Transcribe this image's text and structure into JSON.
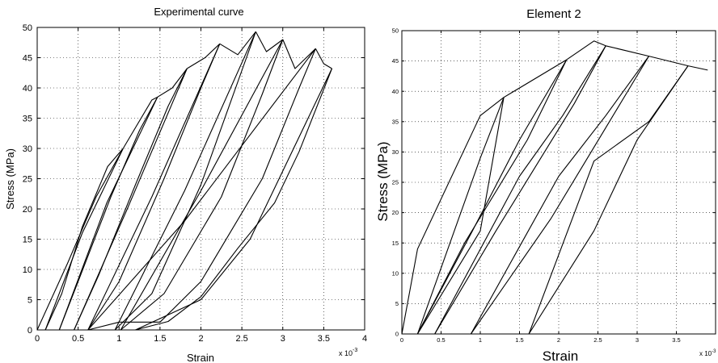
{
  "chart_data": [
    {
      "type": "line",
      "title": "Experimental curve",
      "xlabel": "Strain",
      "ylabel": "Stress (MPa)",
      "x_multiplier": "x 10",
      "x_exponent": "-3",
      "xlim": [
        0,
        4
      ],
      "ylim": [
        0,
        50
      ],
      "xticks": [
        0,
        0.5,
        1,
        1.5,
        2,
        2.5,
        3,
        3.5,
        4
      ],
      "xtick_labels": [
        "0",
        "0.5",
        "1",
        "1.5",
        "2",
        "2.5",
        "3",
        "3.5",
        "4"
      ],
      "yticks": [
        0,
        5,
        10,
        15,
        20,
        25,
        30,
        35,
        40,
        45,
        50
      ],
      "ytick_labels": [
        "0",
        "5",
        "10",
        "15",
        "20",
        "25",
        "30",
        "35",
        "40",
        "45",
        "50"
      ],
      "grid": true,
      "series": [
        {
          "x": [
            0,
            0.37,
            0.72,
            1.05
          ],
          "y": [
            0,
            11,
            22,
            30
          ]
        },
        {
          "x": [
            1.05,
            0.86,
            0.55,
            0.3,
            0.1
          ],
          "y": [
            30,
            27,
            17,
            6,
            0
          ]
        },
        {
          "x": [
            0.1,
            0.55,
            1.05
          ],
          "y": [
            0,
            16,
            30
          ]
        },
        {
          "x": [
            1.05,
            1.4,
            1.47
          ],
          "y": [
            30,
            38,
            38.5
          ]
        },
        {
          "x": [
            1.47,
            1.25,
            0.9,
            0.5,
            0.27
          ],
          "y": [
            38.5,
            33,
            22,
            8,
            0
          ]
        },
        {
          "x": [
            0.27,
            0.85,
            1.47
          ],
          "y": [
            0,
            21,
            38.5
          ]
        },
        {
          "x": [
            1.47,
            1.65,
            1.83
          ],
          "y": [
            38.5,
            40,
            43.2
          ]
        },
        {
          "x": [
            1.83,
            1.6,
            1.2,
            0.75,
            0.45
          ],
          "y": [
            43.2,
            37,
            24,
            9,
            0
          ]
        },
        {
          "x": [
            0.45,
            1.1,
            1.83
          ],
          "y": [
            0,
            20,
            43.2
          ]
        },
        {
          "x": [
            1.83,
            2.05,
            2.23
          ],
          "y": [
            43.2,
            45,
            47.3
          ]
        },
        {
          "x": [
            2.23,
            2.0,
            1.55,
            1.0,
            0.62
          ],
          "y": [
            47.3,
            40,
            25,
            8,
            0
          ]
        },
        {
          "x": [
            0.62,
            1.4,
            2.23
          ],
          "y": [
            0,
            22,
            47.3
          ]
        },
        {
          "x": [
            2.23,
            2.45,
            2.67
          ],
          "y": [
            47.3,
            45.5,
            49.3
          ]
        },
        {
          "x": [
            2.67,
            2.45,
            2.0,
            1.4,
            0.95
          ],
          "y": [
            49.3,
            41,
            24,
            6,
            0
          ]
        },
        {
          "x": [
            0.95,
            1.8,
            2.67
          ],
          "y": [
            0,
            23,
            49.3
          ]
        },
        {
          "x": [
            2.67,
            2.8,
            3.0
          ],
          "y": [
            49.3,
            46,
            48
          ]
        },
        {
          "x": [
            3.0,
            2.75,
            2.25,
            1.55,
            1.02
          ],
          "y": [
            48,
            39,
            22,
            6,
            0
          ]
        },
        {
          "x": [
            1.02,
            2.0,
            3.0
          ],
          "y": [
            0,
            23,
            48
          ]
        },
        {
          "x": [
            3.0,
            3.15,
            3.4
          ],
          "y": [
            48,
            43.2,
            46.5
          ]
        },
        {
          "x": [
            3.4,
            3.2,
            2.75,
            2.0,
            1.5
          ],
          "y": [
            46.5,
            40,
            25,
            8,
            1.3
          ]
        },
        {
          "x": [
            1.5,
            1.0,
            0.62
          ],
          "y": [
            1.3,
            1.3,
            0
          ]
        },
        {
          "x": [
            0.62,
            1.8,
            3.4
          ],
          "y": [
            0,
            18,
            46.5
          ]
        },
        {
          "x": [
            3.4,
            3.5,
            3.6
          ],
          "y": [
            46.5,
            44,
            43.2
          ]
        },
        {
          "x": [
            3.6,
            3.2,
            2.9,
            2.45,
            2.0,
            1.6,
            1.2
          ],
          "y": [
            43.2,
            29.5,
            21,
            13.5,
            5.5,
            1.4,
            0
          ]
        },
        {
          "x": [
            1.2,
            2.0,
            2.6,
            3.6
          ],
          "y": [
            0,
            5,
            15,
            43.2
          ]
        }
      ]
    },
    {
      "type": "line",
      "title": "Element 2",
      "xlabel": "Strain",
      "ylabel": "Stress (MPa)",
      "x_multiplier": "x 10",
      "x_exponent": "-3",
      "xlim": [
        0,
        4
      ],
      "ylim": [
        0,
        50
      ],
      "xticks": [
        0,
        0.5,
        1,
        1.5,
        2,
        2.5,
        3,
        3.5
      ],
      "xtick_labels": [
        "0",
        "0.5",
        "1",
        "1.5",
        "2",
        "2.5",
        "3",
        "3.5"
      ],
      "yticks": [
        0,
        5,
        10,
        15,
        20,
        25,
        30,
        35,
        40,
        45,
        50
      ],
      "ytick_labels": [
        "0",
        "5",
        "10",
        "15",
        "20",
        "25",
        "30",
        "35",
        "40",
        "45",
        "50"
      ],
      "grid": true,
      "series": [
        {
          "x": [
            0,
            0.2,
            1.0,
            1.3,
            2.1,
            2.45,
            2.6,
            3.15,
            3.65,
            3.9
          ],
          "y": [
            0,
            14,
            36,
            39,
            45.2,
            48.3,
            47.5,
            45.8,
            44.2,
            43.5
          ]
        },
        {
          "x": [
            1.3,
            1.0,
            0.2
          ],
          "y": [
            39,
            29,
            0
          ]
        },
        {
          "x": [
            0.2,
            1.0,
            1.3
          ],
          "y": [
            0,
            17,
            39
          ]
        },
        {
          "x": [
            2.1,
            1.5,
            0.9,
            0.2
          ],
          "y": [
            45.2,
            32,
            17,
            0
          ]
        },
        {
          "x": [
            0.2,
            0.8,
            1.6,
            2.1
          ],
          "y": [
            0,
            15,
            32,
            45.2
          ]
        },
        {
          "x": [
            2.6,
            2.05,
            1.5,
            0.42
          ],
          "y": [
            47.5,
            36,
            26,
            0
          ]
        },
        {
          "x": [
            0.42,
            1.2,
            2.2,
            2.6
          ],
          "y": [
            0,
            17,
            38,
            47.5
          ]
        },
        {
          "x": [
            3.15,
            2.6,
            2.0,
            0.88
          ],
          "y": [
            45.8,
            36,
            26,
            0
          ]
        },
        {
          "x": [
            0.88,
            1.9,
            2.6,
            3.15
          ],
          "y": [
            0,
            19,
            34,
            45.8
          ]
        },
        {
          "x": [
            3.65,
            3.15,
            2.45,
            1.62
          ],
          "y": [
            44.2,
            35,
            28.5,
            0
          ]
        },
        {
          "x": [
            1.62,
            2.45,
            3.0,
            3.65
          ],
          "y": [
            0,
            17,
            32,
            44.2
          ]
        }
      ]
    }
  ]
}
